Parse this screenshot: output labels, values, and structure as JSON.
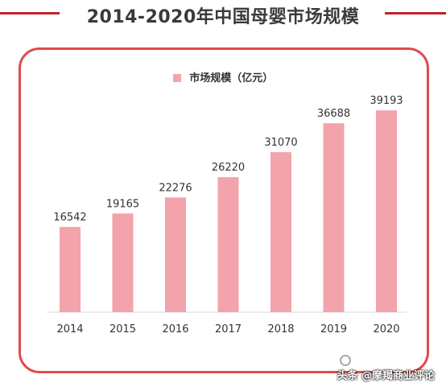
{
  "title": "2014-2020年中国母婴市场规模",
  "colors": {
    "bar": "#f3a3ab",
    "border": "#e14a4a",
    "rule": "#c0202a"
  },
  "watermark": "头条 @摩羯商业评论",
  "chart_data": {
    "type": "bar",
    "categories": [
      "2014",
      "2015",
      "2016",
      "2017",
      "2018",
      "2019",
      "2020"
    ],
    "series": [
      {
        "name": "市场规模（亿元）",
        "values": [
          16542,
          19165,
          22276,
          26220,
          31070,
          36688,
          39193
        ]
      }
    ],
    "ylim": [
      0,
      45000
    ],
    "grid": false,
    "legend": "top-center",
    "data_labels": true
  }
}
